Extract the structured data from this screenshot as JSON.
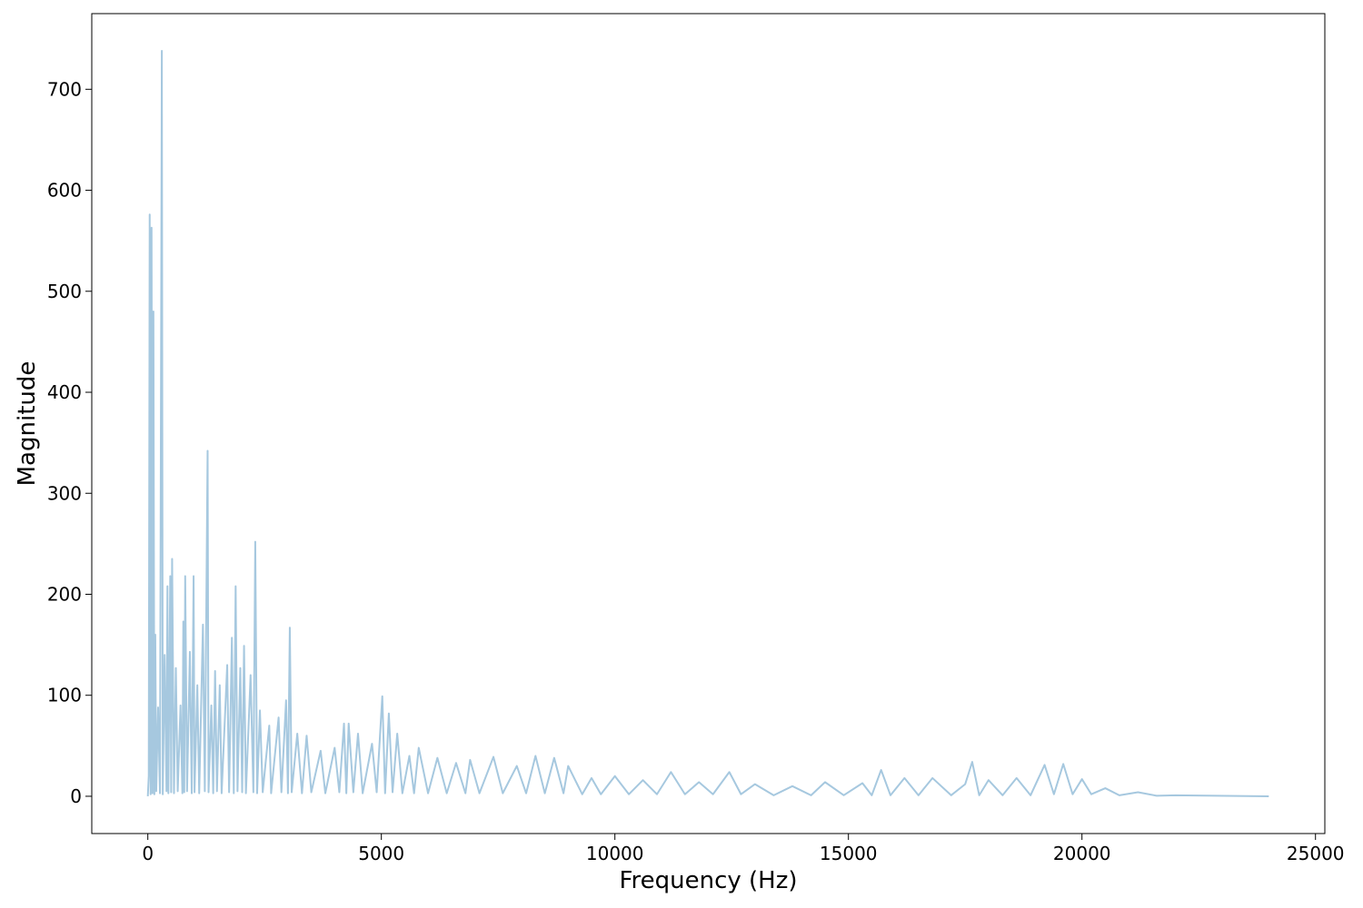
{
  "chart_data": {
    "type": "line",
    "x_label": "Frequency (Hz)",
    "y_label": "Magnitude",
    "color": "#a6c8df",
    "x": [
      0,
      20,
      40,
      60,
      80,
      100,
      120,
      140,
      160,
      180,
      220,
      260,
      300,
      320,
      360,
      400,
      420,
      440,
      480,
      500,
      520,
      560,
      600,
      640,
      700,
      740,
      760,
      780,
      800,
      840,
      900,
      940,
      980,
      1000,
      1060,
      1100,
      1180,
      1220,
      1280,
      1300,
      1360,
      1400,
      1440,
      1480,
      1540,
      1580,
      1700,
      1740,
      1800,
      1840,
      1880,
      1920,
      1980,
      2020,
      2060,
      2100,
      2200,
      2260,
      2300,
      2340,
      2400,
      2460,
      2600,
      2640,
      2800,
      2860,
      2960,
      3000,
      3040,
      3080,
      3200,
      3300,
      3400,
      3500,
      3700,
      3800,
      4000,
      4100,
      4200,
      4250,
      4300,
      4400,
      4500,
      4600,
      4800,
      4900,
      5020,
      5080,
      5160,
      5240,
      5340,
      5450,
      5600,
      5700,
      5800,
      6000,
      6200,
      6400,
      6600,
      6800,
      6900,
      7100,
      7400,
      7600,
      7900,
      8100,
      8300,
      8500,
      8700,
      8900,
      9000,
      9300,
      9500,
      9700,
      10000,
      10300,
      10600,
      10900,
      11200,
      11500,
      11800,
      12100,
      12450,
      12700,
      13000,
      13400,
      13800,
      14200,
      14500,
      14900,
      15300,
      15500,
      15700,
      15900,
      16200,
      16500,
      16800,
      17200,
      17500,
      17650,
      17800,
      18000,
      18300,
      18600,
      18900,
      19200,
      19400,
      19600,
      19800,
      20000,
      20200,
      20500,
      20800,
      21200,
      21600,
      22000,
      24000
    ],
    "values": [
      0,
      20,
      576,
      2,
      563,
      3,
      480,
      2,
      160,
      5,
      88,
      3,
      738,
      2,
      140,
      5,
      208,
      3,
      218,
      4,
      235,
      3,
      127,
      5,
      90,
      3,
      173,
      4,
      218,
      5,
      143,
      3,
      218,
      4,
      110,
      3,
      170,
      5,
      342,
      4,
      90,
      3,
      124,
      5,
      110,
      3,
      130,
      4,
      157,
      3,
      208,
      5,
      127,
      4,
      149,
      3,
      120,
      4,
      252,
      3,
      85,
      4,
      70,
      3,
      78,
      4,
      95,
      3,
      167,
      4,
      62,
      3,
      60,
      4,
      45,
      3,
      48,
      4,
      72,
      3,
      72,
      4,
      62,
      3,
      52,
      4,
      99,
      3,
      82,
      4,
      62,
      3,
      40,
      3,
      48,
      3,
      38,
      3,
      33,
      3,
      36,
      3,
      39,
      3,
      30,
      3,
      40,
      3,
      38,
      3,
      30,
      2,
      18,
      2,
      20,
      2,
      16,
      2,
      24,
      2,
      14,
      2,
      24,
      2,
      12,
      1,
      10,
      1,
      14,
      1,
      13,
      1,
      26,
      1,
      18,
      1,
      18,
      1,
      12,
      34,
      1,
      16,
      1,
      18,
      1,
      31,
      2,
      32,
      2,
      17,
      2,
      8,
      1,
      4,
      0.5,
      1,
      0
    ],
    "xlim": [
      -1200,
      25200
    ],
    "xticks": [
      0,
      5000,
      10000,
      15000,
      20000,
      25000
    ],
    "ylim": [
      -36.9,
      774.9
    ],
    "yticks": [
      0,
      100,
      200,
      300,
      400,
      500,
      600,
      700
    ]
  }
}
